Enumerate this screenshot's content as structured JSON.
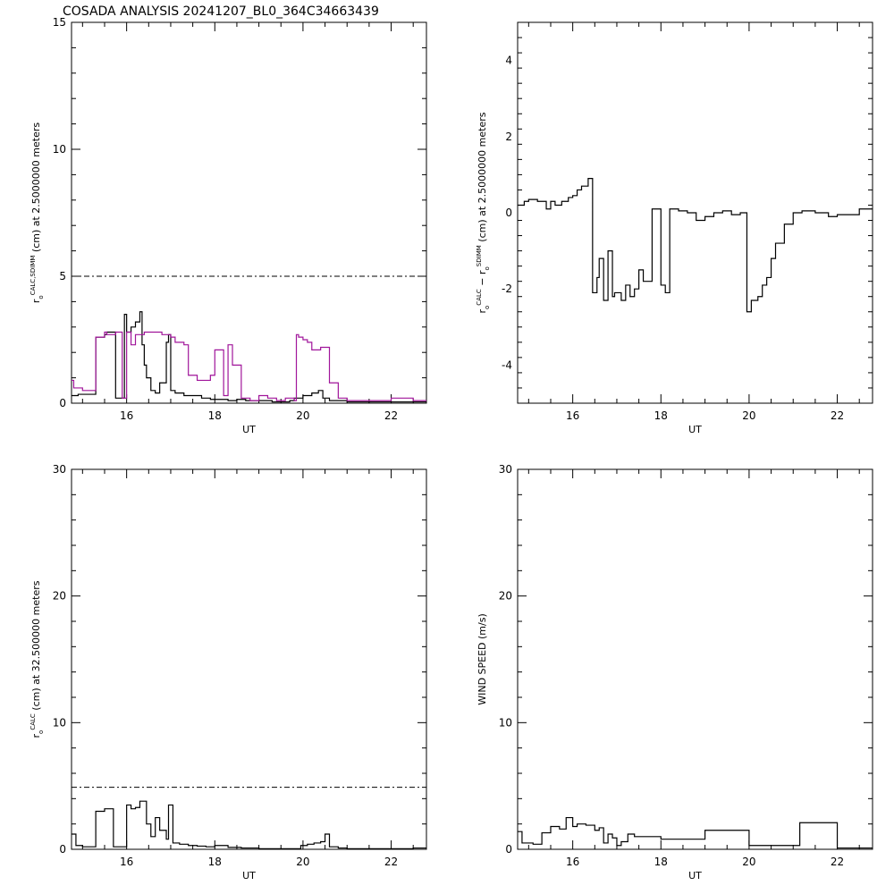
{
  "title": "COSADA ANALYSIS  20241207_BL0_364C34663439",
  "chart_data": [
    {
      "type": "line",
      "panel": "top-left",
      "xlabel": "UT",
      "ylabel": {
        "prefix": "r",
        "sub": "o",
        "sup": "CALC,SDIMM",
        "suffix": "(cm)  at  2.5000000 meters"
      },
      "xlim": [
        14.75,
        22.8
      ],
      "ylim": [
        0,
        15
      ],
      "xticks": [
        16,
        18,
        20,
        22
      ],
      "yticks": [
        0,
        5,
        10,
        15
      ],
      "reference_line": {
        "y": 5,
        "style": "dash-dot"
      },
      "series": [
        {
          "color": "#000000",
          "step": true,
          "x": [
            14.75,
            14.9,
            15.2,
            15.3,
            15.5,
            15.55,
            15.75,
            15.9,
            15.95,
            16.0,
            16.1,
            16.2,
            16.3,
            16.35,
            16.4,
            16.45,
            16.55,
            16.65,
            16.75,
            16.9,
            16.95,
            17.0,
            17.1,
            17.3,
            17.5,
            17.7,
            17.9,
            18.1,
            18.3,
            18.5,
            18.7,
            18.9,
            19.1,
            19.3,
            19.5,
            19.7,
            19.8,
            20.0,
            20.2,
            20.35,
            20.45,
            20.6,
            20.8,
            21.0,
            21.5,
            22.0,
            22.5
          ],
          "y": [
            0.3,
            0.35,
            0.35,
            2.6,
            2.7,
            2.8,
            0.2,
            0.2,
            3.5,
            2.8,
            3.0,
            3.2,
            3.6,
            2.3,
            1.5,
            1.0,
            0.5,
            0.4,
            0.8,
            2.4,
            2.7,
            0.5,
            0.4,
            0.3,
            0.3,
            0.2,
            0.15,
            0.15,
            0.1,
            0.15,
            0.1,
            0.1,
            0.1,
            0.05,
            0.05,
            0.1,
            0.2,
            0.3,
            0.4,
            0.5,
            0.2,
            0.1,
            0.1,
            0.05,
            0.05,
            0.05,
            0.05
          ]
        },
        {
          "color": "#a0159a",
          "step": true,
          "x": [
            14.75,
            14.8,
            15.0,
            15.2,
            15.3,
            15.5,
            15.55,
            15.75,
            15.9,
            16.0,
            16.1,
            16.2,
            16.4,
            16.6,
            16.8,
            17.0,
            17.1,
            17.3,
            17.4,
            17.6,
            17.9,
            18.0,
            18.2,
            18.3,
            18.4,
            18.6,
            18.8,
            19.0,
            19.2,
            19.4,
            19.6,
            19.8,
            19.85,
            19.9,
            20.0,
            20.1,
            20.2,
            20.3,
            20.4,
            20.6,
            20.8,
            21.0,
            21.5,
            22.0,
            22.5
          ],
          "y": [
            0.9,
            0.6,
            0.5,
            0.5,
            2.6,
            2.8,
            2.7,
            2.8,
            0.2,
            2.8,
            2.3,
            2.7,
            2.8,
            2.8,
            2.7,
            2.6,
            2.4,
            2.3,
            1.1,
            0.9,
            1.1,
            2.1,
            0.3,
            2.3,
            1.5,
            0.2,
            0.1,
            0.3,
            0.2,
            0.1,
            0.2,
            0.1,
            2.7,
            2.6,
            2.5,
            2.4,
            2.1,
            2.1,
            2.2,
            0.8,
            0.2,
            0.1,
            0.1,
            0.2,
            0.1
          ]
        }
      ]
    },
    {
      "type": "line",
      "panel": "top-right",
      "xlabel": "UT",
      "ylabel": {
        "prefix": "r",
        "sub": "o",
        "sup": "CALC",
        "middle": " − r",
        "sub2": "o",
        "sup2": "SDIMM",
        "suffix": "(cm)  at  2.5000000 meters"
      },
      "xlim": [
        14.75,
        22.8
      ],
      "ylim": [
        -5,
        5
      ],
      "xticks": [
        16,
        18,
        20,
        22
      ],
      "yticks": [
        -4,
        -2,
        0,
        2,
        4
      ],
      "series": [
        {
          "color": "#000000",
          "step": true,
          "x": [
            14.75,
            14.9,
            15.0,
            15.2,
            15.4,
            15.5,
            15.6,
            15.75,
            15.9,
            16.0,
            16.1,
            16.2,
            16.35,
            16.45,
            16.55,
            16.6,
            16.7,
            16.8,
            16.9,
            16.95,
            17.1,
            17.2,
            17.3,
            17.4,
            17.5,
            17.6,
            17.8,
            17.9,
            18.0,
            18.1,
            18.2,
            18.4,
            18.6,
            18.8,
            19.0,
            19.2,
            19.4,
            19.6,
            19.8,
            19.95,
            20.05,
            20.2,
            20.3,
            20.4,
            20.5,
            20.6,
            20.8,
            21.0,
            21.2,
            21.5,
            21.8,
            22.0,
            22.5
          ],
          "y": [
            0.2,
            0.3,
            0.35,
            0.3,
            0.1,
            0.3,
            0.2,
            0.3,
            0.4,
            0.45,
            0.6,
            0.7,
            0.9,
            -2.1,
            -1.7,
            -1.2,
            -2.3,
            -1.0,
            -2.2,
            -2.1,
            -2.3,
            -1.9,
            -2.2,
            -2.0,
            -1.5,
            -1.8,
            0.1,
            0.1,
            -1.9,
            -2.1,
            0.1,
            0.05,
            0.0,
            -0.2,
            -0.1,
            0.0,
            0.05,
            -0.05,
            0.0,
            -2.6,
            -2.3,
            -2.2,
            -1.9,
            -1.7,
            -1.2,
            -0.8,
            -0.3,
            0.0,
            0.05,
            0.0,
            -0.1,
            -0.05,
            0.1
          ]
        }
      ]
    },
    {
      "type": "line",
      "panel": "bottom-left",
      "xlabel": "UT",
      "ylabel": {
        "prefix": "r",
        "sub": "o",
        "sup": "CALC",
        "suffix": "(cm)  at  32.500000 meters"
      },
      "xlim": [
        14.75,
        22.8
      ],
      "ylim": [
        0,
        30
      ],
      "xticks": [
        16,
        18,
        20,
        22
      ],
      "yticks": [
        0,
        10,
        20,
        30
      ],
      "reference_line": {
        "y": 4.9,
        "style": "dash-dot"
      },
      "series": [
        {
          "color": "#000000",
          "step": true,
          "x": [
            14.75,
            14.85,
            15.0,
            15.2,
            15.3,
            15.5,
            15.7,
            15.95,
            16.0,
            16.1,
            16.2,
            16.3,
            16.45,
            16.55,
            16.65,
            16.75,
            16.9,
            16.95,
            17.05,
            17.2,
            17.4,
            17.6,
            17.8,
            18.0,
            18.3,
            18.6,
            19.0,
            19.4,
            19.8,
            19.95,
            20.1,
            20.25,
            20.4,
            20.5,
            20.6,
            20.8,
            21.0,
            21.5,
            22.0,
            22.5
          ],
          "y": [
            1.2,
            0.3,
            0.2,
            0.2,
            3.0,
            3.2,
            0.2,
            0.2,
            3.5,
            3.2,
            3.3,
            3.8,
            2.0,
            1.0,
            2.5,
            1.5,
            0.8,
            3.5,
            0.5,
            0.4,
            0.3,
            0.25,
            0.2,
            0.3,
            0.15,
            0.1,
            0.05,
            0.05,
            0.05,
            0.3,
            0.4,
            0.5,
            0.6,
            1.2,
            0.2,
            0.1,
            0.05,
            0.05,
            0.05,
            0.1
          ]
        }
      ]
    },
    {
      "type": "line",
      "panel": "bottom-right",
      "xlabel": "UT",
      "ylabel": {
        "prefix": "WIND SPEED (m/s)",
        "sub": "",
        "sup": "",
        "suffix": ""
      },
      "xlim": [
        14.75,
        22.8
      ],
      "ylim": [
        0,
        30
      ],
      "xticks": [
        16,
        18,
        20,
        22
      ],
      "yticks": [
        0,
        10,
        20,
        30
      ],
      "series": [
        {
          "color": "#000000",
          "step": true,
          "x": [
            14.75,
            14.85,
            15.1,
            15.3,
            15.5,
            15.7,
            15.85,
            16.0,
            16.1,
            16.3,
            16.5,
            16.6,
            16.7,
            16.8,
            16.9,
            17.0,
            17.1,
            17.25,
            17.4,
            18.0,
            19.0,
            20.0,
            20.9,
            21.15,
            22.0,
            22.8
          ],
          "y": [
            1.4,
            0.5,
            0.4,
            1.3,
            1.8,
            1.6,
            2.5,
            1.8,
            2.0,
            1.9,
            1.5,
            1.7,
            0.5,
            1.2,
            0.9,
            0.3,
            0.6,
            1.2,
            1.0,
            0.8,
            1.5,
            0.3,
            0.3,
            2.1,
            0.1,
            0.1
          ]
        }
      ]
    }
  ]
}
